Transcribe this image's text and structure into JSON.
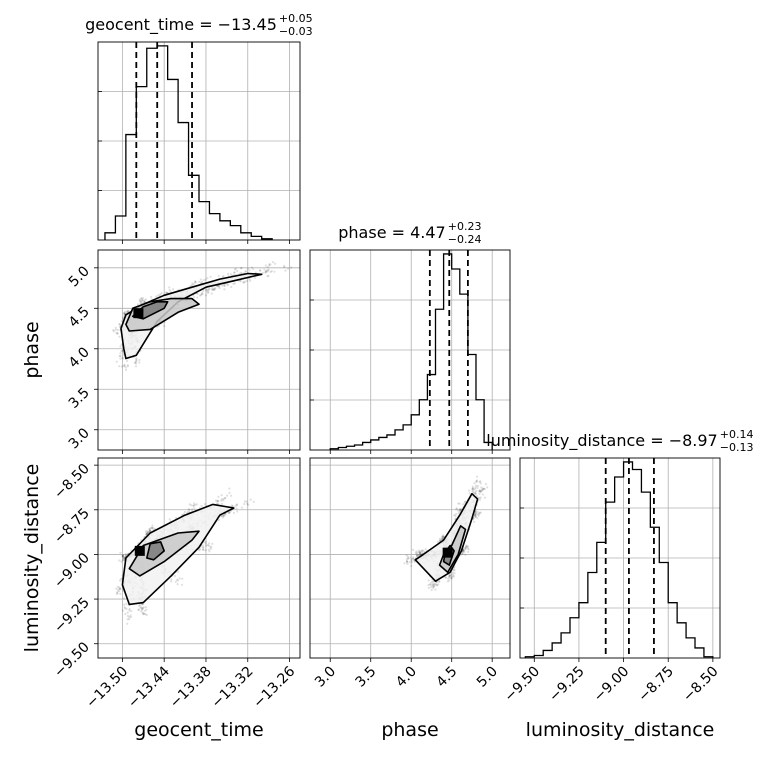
{
  "chart_data": {
    "type": "corner",
    "parameters": [
      "geocent_time",
      "phase",
      "luminosity_distance"
    ],
    "titles": [
      {
        "param": "geocent_time",
        "text": "geocent_time = −13.45",
        "sup": "+0.05",
        "sub": "−0.03"
      },
      {
        "param": "phase",
        "text": "phase = 4.47",
        "sup": "+0.23",
        "sub": "−0.24"
      },
      {
        "param": "luminosity_distance",
        "text": "luminosity_distance = −8.97",
        "sup": "+0.14",
        "sub": "−0.13"
      }
    ],
    "axis_labels": {
      "geocent_time": "geocent_time",
      "phase": "phase",
      "luminosity_distance": "luminosity_distance"
    },
    "ranges": {
      "geocent_time": [
        -13.535,
        -13.245
      ],
      "phase": [
        2.75,
        5.22
      ],
      "luminosity_distance": [
        -9.58,
        -8.46
      ]
    },
    "ticks": {
      "geocent_time": [
        "−13.50",
        "−13.44",
        "−13.38",
        "−13.32",
        "−13.26"
      ],
      "phase": [
        "3.0",
        "3.5",
        "4.0",
        "4.5",
        "5.0"
      ],
      "luminosity_distance": [
        "−9.50",
        "−9.25",
        "−9.00",
        "−8.75",
        "−8.50"
      ]
    },
    "tick_values": {
      "geocent_time": [
        -13.5,
        -13.44,
        -13.38,
        -13.32,
        -13.26
      ],
      "phase": [
        3.0,
        3.5,
        4.0,
        4.5,
        5.0
      ],
      "luminosity_distance": [
        -9.5,
        -9.25,
        -9.0,
        -8.75,
        -8.5
      ]
    },
    "quantiles": {
      "geocent_time": [
        -13.48,
        -13.45,
        -13.4
      ],
      "phase": [
        4.23,
        4.47,
        4.7
      ],
      "luminosity_distance": [
        -9.1,
        -8.97,
        -8.83
      ]
    },
    "histograms": {
      "geocent_time": {
        "edges": [
          -13.525,
          -13.51,
          -13.495,
          -13.48,
          -13.465,
          -13.45,
          -13.435,
          -13.42,
          -13.405,
          -13.39,
          -13.375,
          -13.36,
          -13.345,
          -13.33,
          -13.315,
          -13.3,
          -13.285
        ],
        "counts": [
          0.03,
          0.1,
          0.44,
          0.64,
          0.8,
          0.81,
          0.67,
          0.49,
          0.27,
          0.16,
          0.11,
          0.08,
          0.06,
          0.03,
          0.015,
          0.005
        ]
      },
      "phase": {
        "edges": [
          3.0,
          3.1,
          3.2,
          3.3,
          3.4,
          3.5,
          3.6,
          3.7,
          3.8,
          3.9,
          4.0,
          4.1,
          4.2,
          4.3,
          4.4,
          4.5,
          4.6,
          4.7,
          4.8,
          4.9,
          5.0
        ],
        "counts": [
          0.005,
          0.01,
          0.015,
          0.02,
          0.03,
          0.04,
          0.05,
          0.06,
          0.08,
          0.1,
          0.14,
          0.2,
          0.3,
          0.56,
          0.78,
          0.72,
          0.62,
          0.38,
          0.2,
          0.03
        ]
      },
      "luminosity_distance": {
        "edges": [
          -9.55,
          -9.5,
          -9.45,
          -9.4,
          -9.35,
          -9.3,
          -9.25,
          -9.2,
          -9.15,
          -9.1,
          -9.05,
          -9.0,
          -8.95,
          -8.9,
          -8.85,
          -8.8,
          -8.75,
          -8.7,
          -8.65,
          -8.6,
          -8.55,
          -8.5
        ],
        "counts": [
          0.005,
          0.01,
          0.03,
          0.06,
          0.1,
          0.16,
          0.22,
          0.34,
          0.46,
          0.62,
          0.72,
          0.78,
          0.75,
          0.66,
          0.52,
          0.38,
          0.22,
          0.14,
          0.08,
          0.04,
          0.005
        ]
      }
    },
    "pairs": [
      {
        "x": "geocent_time",
        "y": "phase",
        "median": [
          -13.477,
          4.44
        ],
        "contours": [
          [
            [
              -13.498,
              4.0
            ],
            [
              -13.502,
              4.25
            ],
            [
              -13.495,
              4.42
            ],
            [
              -13.47,
              4.55
            ],
            [
              -13.44,
              4.66
            ],
            [
              -13.4,
              4.76
            ],
            [
              -13.36,
              4.86
            ],
            [
              -13.32,
              4.93
            ],
            [
              -13.3,
              4.92
            ],
            [
              -13.34,
              4.84
            ],
            [
              -13.38,
              4.76
            ],
            [
              -13.42,
              4.58
            ],
            [
              -13.45,
              4.34
            ],
            [
              -13.48,
              3.92
            ],
            [
              -13.495,
              3.88
            ]
          ],
          [
            [
              -13.495,
              4.3
            ],
            [
              -13.485,
              4.5
            ],
            [
              -13.46,
              4.58
            ],
            [
              -13.43,
              4.62
            ],
            [
              -13.4,
              4.62
            ],
            [
              -13.39,
              4.55
            ],
            [
              -13.42,
              4.45
            ],
            [
              -13.46,
              4.24
            ],
            [
              -13.49,
              4.22
            ]
          ],
          [
            [
              -13.485,
              4.4
            ],
            [
              -13.47,
              4.52
            ],
            [
              -13.45,
              4.58
            ],
            [
              -13.435,
              4.58
            ],
            [
              -13.44,
              4.5
            ],
            [
              -13.47,
              4.37
            ]
          ]
        ]
      },
      {
        "x": "geocent_time",
        "y": "luminosity_distance",
        "median": [
          -13.475,
          -8.98
        ],
        "contours": [
          [
            [
              -13.5,
              -9.17
            ],
            [
              -13.49,
              -9.28
            ],
            [
              -13.47,
              -9.27
            ],
            [
              -13.43,
              -9.12
            ],
            [
              -13.39,
              -8.96
            ],
            [
              -13.36,
              -8.78
            ],
            [
              -13.34,
              -8.74
            ],
            [
              -13.37,
              -8.72
            ],
            [
              -13.41,
              -8.78
            ],
            [
              -13.46,
              -8.88
            ],
            [
              -13.495,
              -9.02
            ]
          ],
          [
            [
              -13.49,
              -9.08
            ],
            [
              -13.475,
              -9.12
            ],
            [
              -13.44,
              -9.04
            ],
            [
              -13.4,
              -8.92
            ],
            [
              -13.39,
              -8.87
            ],
            [
              -13.42,
              -8.88
            ],
            [
              -13.47,
              -8.95
            ]
          ],
          [
            [
              -13.465,
              -9.02
            ],
            [
              -13.455,
              -9.03
            ],
            [
              -13.44,
              -8.98
            ],
            [
              -13.445,
              -8.93
            ],
            [
              -13.46,
              -8.94
            ]
          ]
        ]
      },
      {
        "x": "phase",
        "y": "luminosity_distance",
        "median": [
          4.45,
          -8.99
        ],
        "contours": [
          [
            [
              4.05,
              -9.03
            ],
            [
              4.3,
              -9.15
            ],
            [
              4.48,
              -9.1
            ],
            [
              4.62,
              -8.98
            ],
            [
              4.75,
              -8.8
            ],
            [
              4.82,
              -8.69
            ],
            [
              4.75,
              -8.66
            ],
            [
              4.6,
              -8.78
            ],
            [
              4.4,
              -8.92
            ],
            [
              4.15,
              -9.0
            ]
          ],
          [
            [
              4.35,
              -9.06
            ],
            [
              4.45,
              -9.1
            ],
            [
              4.58,
              -9.0
            ],
            [
              4.67,
              -8.86
            ],
            [
              4.61,
              -8.84
            ],
            [
              4.5,
              -8.95
            ],
            [
              4.4,
              -9.0
            ]
          ],
          [
            [
              4.4,
              -9.04
            ],
            [
              4.47,
              -9.06
            ],
            [
              4.53,
              -8.98
            ],
            [
              4.48,
              -8.95
            ],
            [
              4.42,
              -8.99
            ]
          ]
        ]
      }
    ]
  }
}
